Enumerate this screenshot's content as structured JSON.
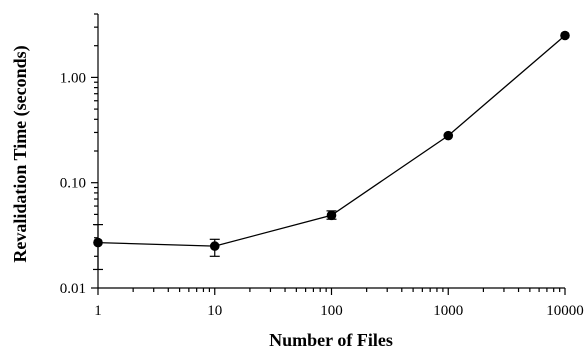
{
  "chart_data": {
    "type": "line",
    "title": "",
    "xlabel": "Number of Files",
    "ylabel": "Revalidation Time (seconds)",
    "x_scale": "log",
    "y_scale": "log",
    "xlim": [
      1,
      10000
    ],
    "ylim": [
      0.01,
      4
    ],
    "x_ticks": [
      {
        "value": 1,
        "label": "1"
      },
      {
        "value": 10,
        "label": "10"
      },
      {
        "value": 100,
        "label": "100"
      },
      {
        "value": 1000,
        "label": "1000"
      },
      {
        "value": 10000,
        "label": "10000"
      }
    ],
    "y_ticks": [
      {
        "value": 0.01,
        "label": "0.01"
      },
      {
        "value": 0.1,
        "label": "0.10"
      },
      {
        "value": 1,
        "label": "1.00"
      }
    ],
    "grid": false,
    "series": [
      {
        "points": [
          {
            "x": 1,
            "y": 0.027,
            "err_low": 0.015,
            "err_high": 0.04
          },
          {
            "x": 10,
            "y": 0.025,
            "err_low": 0.02,
            "err_high": 0.029
          },
          {
            "x": 100,
            "y": 0.049,
            "err_low": 0.045,
            "err_high": 0.054
          },
          {
            "x": 1000,
            "y": 0.28,
            "err_low": 0.28,
            "err_high": 0.28
          },
          {
            "x": 10000,
            "y": 2.5,
            "err_low": 2.5,
            "err_high": 2.5
          }
        ]
      }
    ]
  }
}
